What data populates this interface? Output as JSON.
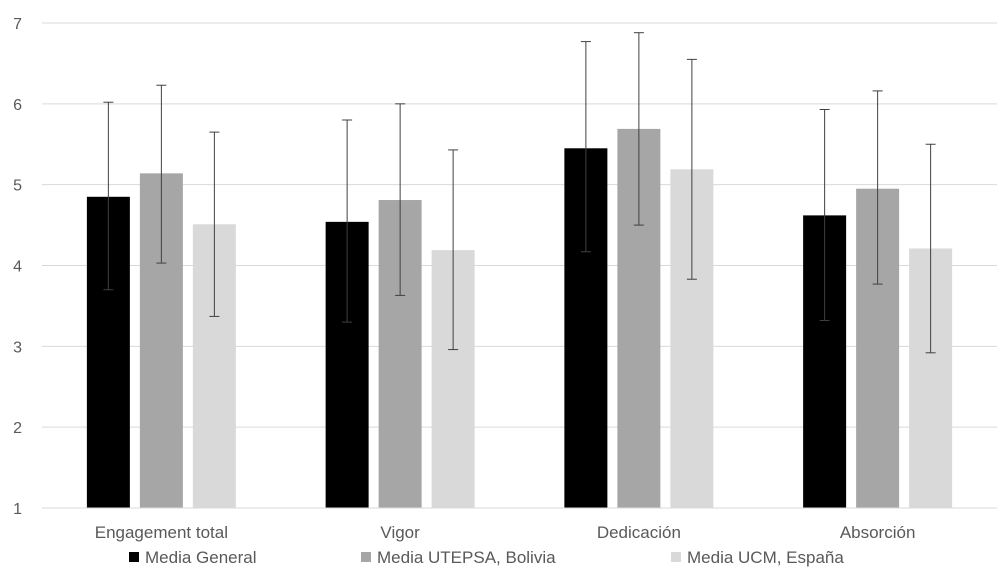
{
  "chart_data": {
    "type": "bar",
    "categories": [
      "Engagement total",
      "Vigor",
      "Dedicación",
      "Absorción"
    ],
    "series": [
      {
        "name": "Media General",
        "color": "#000000",
        "values": [
          4.85,
          4.54,
          5.45,
          4.62
        ],
        "error_low": [
          3.7,
          3.3,
          4.17,
          3.32
        ],
        "error_high": [
          6.02,
          5.8,
          6.77,
          5.93
        ]
      },
      {
        "name": "Media UTEPSA, Bolivia",
        "color": "#a6a6a6",
        "values": [
          5.14,
          4.81,
          5.69,
          4.95
        ],
        "error_low": [
          4.03,
          3.63,
          4.5,
          3.77
        ],
        "error_high": [
          6.23,
          6.0,
          6.88,
          6.16
        ]
      },
      {
        "name": "Media UCM, España",
        "color": "#d9d9d9",
        "values": [
          4.51,
          4.19,
          5.19,
          4.21
        ],
        "error_low": [
          3.37,
          2.96,
          3.83,
          2.92
        ],
        "error_high": [
          5.65,
          5.43,
          6.55,
          5.5
        ]
      }
    ],
    "y_ticks": [
      "1",
      "2",
      "3",
      "4",
      "5",
      "6",
      "7"
    ],
    "ylim": [
      1,
      7
    ],
    "grid": true,
    "legend_position": "bottom",
    "title": "",
    "xlabel": "",
    "ylabel": ""
  }
}
